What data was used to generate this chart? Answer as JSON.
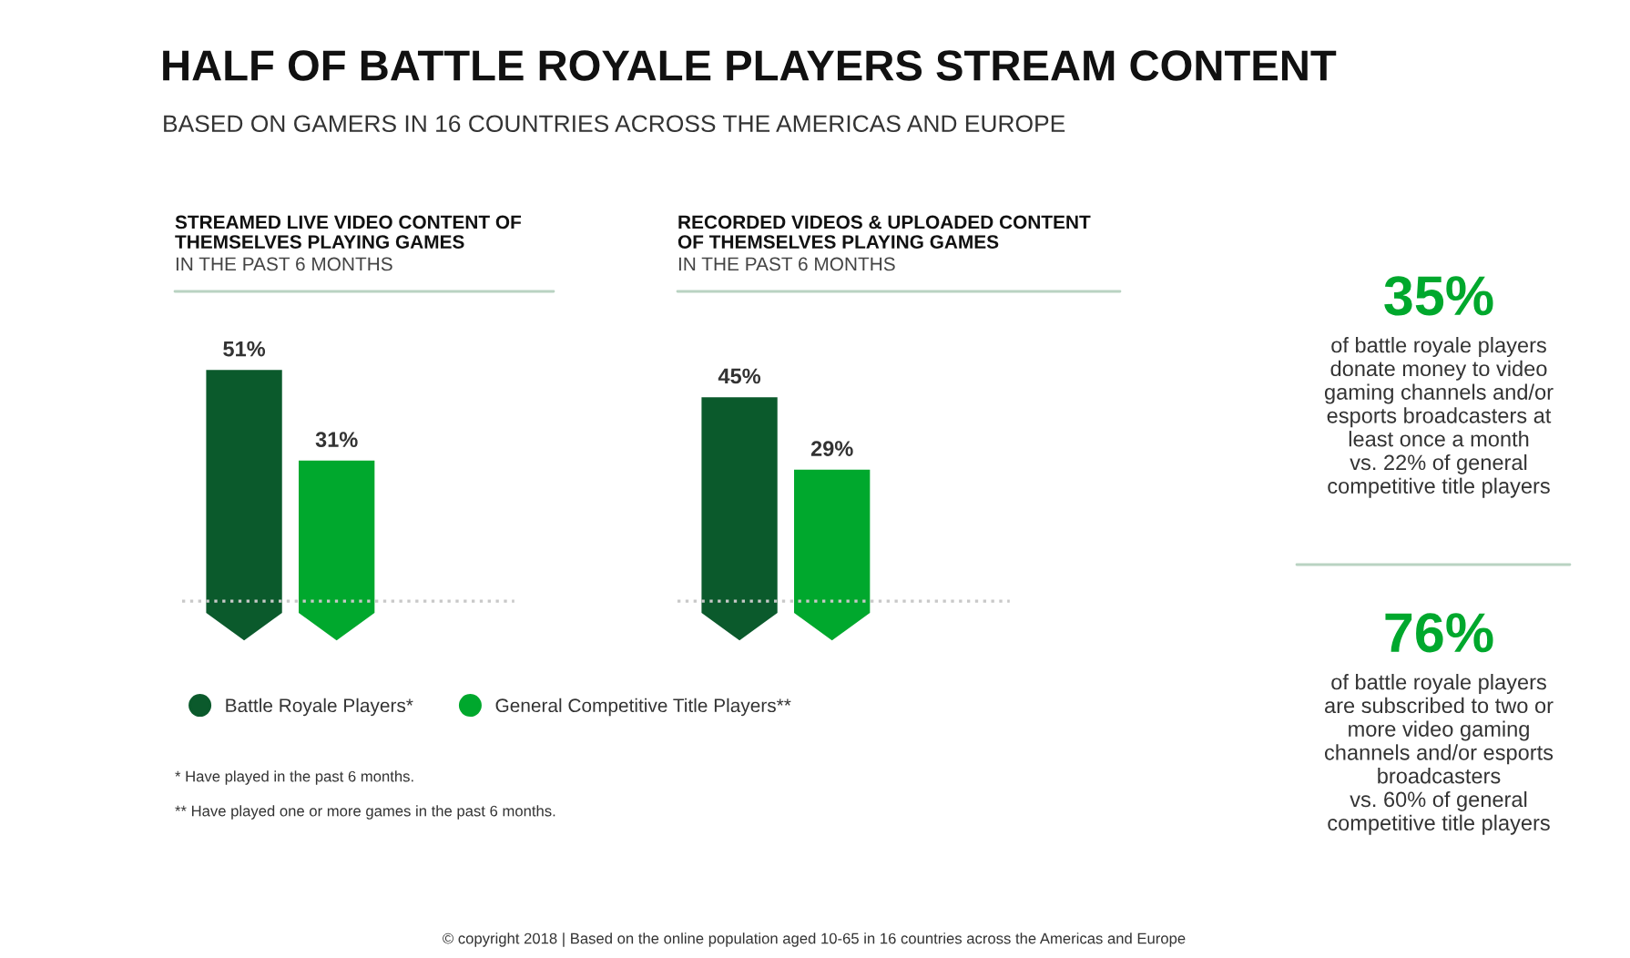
{
  "chart_data": [
    {
      "type": "other",
      "title": "HALF OF BATTLE ROYALE PLAYERS STREAM CONTENT",
      "subtitle": "BASED ON GAMERS IN 16 COUNTRIES ACROSS THE AMERICAS AND EUROPE",
      "annotations": [
        "* Have played in the past 6 months.",
        "** Have played one or more games in the past 6 months.",
        "© copyright 2018 | Based on the online population aged 10-65 in 16 countries across the Americas and Europe"
      ]
    },
    {
      "type": "bar",
      "title": "STREAMED LIVE VIDEO CONTENT OF\nTHEMSELVES PLAYING GAMES",
      "subtitle": "IN THE PAST 6 MONTHS",
      "categories": [
        null
      ],
      "legend": "bottom",
      "ref_lines": [
        {
          "axis": "y",
          "value": 0,
          "color": "#c8c8c8",
          "line_style": "dotted"
        }
      ],
      "series": [
        {
          "name": "Battle Royale Players*",
          "color": "#0b5a2c",
          "values": [
            51
          ],
          "value_labels": [
            "51%"
          ]
        },
        {
          "name": "General Competitive Title Players**",
          "color": "#00a82d",
          "values": [
            31
          ],
          "value_labels": [
            "31%"
          ]
        }
      ]
    },
    {
      "type": "bar",
      "title": "RECORDED VIDEOS & UPLOADED CONTENT\nOF THEMSELVES PLAYING GAMES",
      "subtitle": "IN THE PAST 6 MONTHS",
      "categories": [
        null
      ],
      "ref_lines": [
        {
          "axis": "y",
          "value": 0,
          "color": "#c8c8c8",
          "line_style": "dotted"
        }
      ],
      "series": [
        {
          "color": "#0b5a2c",
          "values": [
            45
          ],
          "value_labels": [
            "45%"
          ]
        },
        {
          "color": "#00a82d",
          "values": [
            29
          ],
          "value_labels": [
            "29%"
          ]
        }
      ]
    },
    {
      "type": "other",
      "title": "35%",
      "annotations": [
        "of battle royale players\ndonate money to video\ngaming channels and/or\nesports broadcasters at\nleast once a month\nvs. 22% of general\ncompetitive title players"
      ]
    },
    {
      "type": "other",
      "title": "76%",
      "annotations": [
        "of battle royale players\nare subscribed to two or\nmore video gaming\nchannels and/or esports\nbroadcasters\nvs. 60% of general\ncompetitive title players"
      ]
    }
  ]
}
